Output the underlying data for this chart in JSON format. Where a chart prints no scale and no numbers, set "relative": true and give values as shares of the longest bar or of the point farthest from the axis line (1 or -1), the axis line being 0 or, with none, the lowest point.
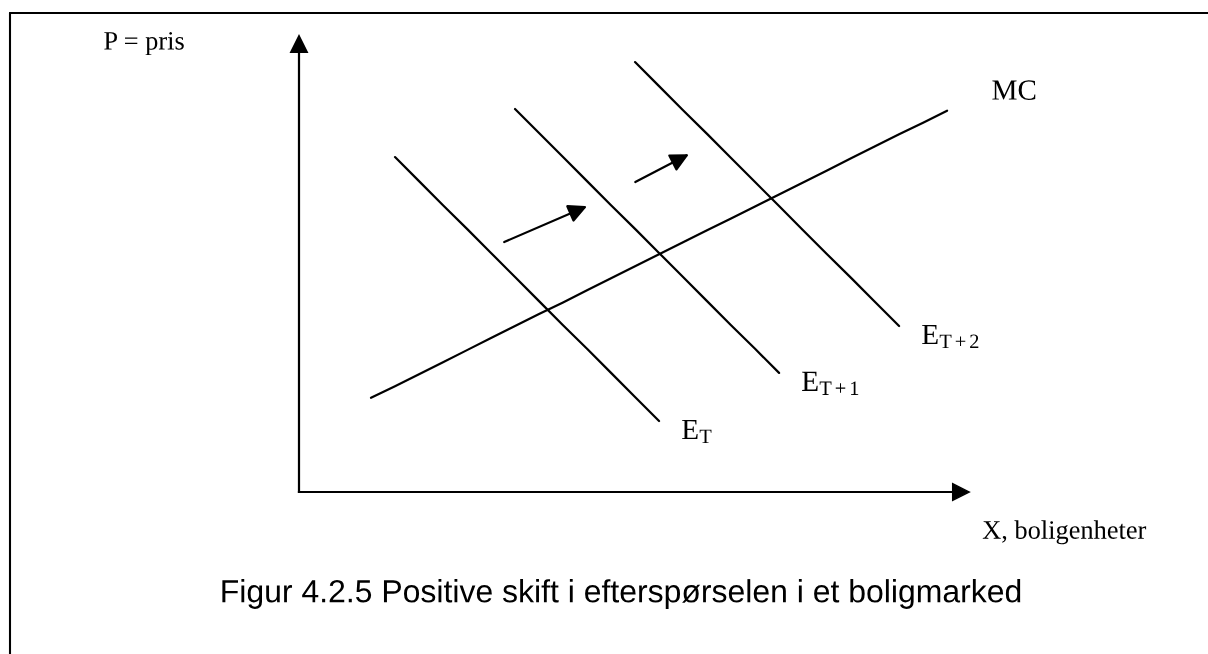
{
  "chart_data": {
    "type": "line",
    "relative": true,
    "title": "Figur 4.2.5 Positive skift i efterspørselen i et boligmarked",
    "xlabel": "X, boligenheter",
    "annotations": [
      "P = pris"
    ],
    "tick_labels": false,
    "categories": [
      null,
      null,
      null,
      null,
      null,
      null,
      null,
      null,
      null,
      null,
      null,
      null,
      null,
      null,
      null,
      null,
      null,
      null,
      null,
      null,
      null,
      null,
      null,
      null,
      null
    ],
    "series": [
      {
        "name": "MC",
        "color": "#000000",
        "values": [
          0.219,
          0.246,
          0.274,
          0.302,
          0.33,
          0.358,
          0.386,
          0.414,
          0.441,
          0.469,
          0.497,
          0.525,
          0.553,
          0.581,
          0.609,
          0.636,
          0.664,
          0.692,
          0.72,
          0.748,
          0.776,
          0.804,
          0.832,
          0.859,
          0.887
        ]
      },
      {
        "name": "E$_{T}$",
        "color": "#000000",
        "values": [
          null,
          0.779,
          0.723,
          0.667,
          0.612,
          0.556,
          0.5,
          0.444,
          0.388,
          0.333,
          0.277,
          0.221,
          0.165,
          null,
          null,
          null,
          null,
          null,
          null,
          null,
          null,
          null,
          null,
          null,
          null
        ]
      },
      {
        "name": "E$_{T+1}$",
        "color": "#000000",
        "values": [
          null,
          null,
          null,
          null,
          null,
          null,
          0.891,
          0.835,
          0.779,
          0.723,
          0.667,
          0.612,
          0.556,
          0.5,
          0.444,
          0.388,
          0.333,
          0.277,
          null,
          null,
          null,
          null,
          null,
          null,
          null
        ]
      },
      {
        "name": "E$_{T+2}$",
        "color": "#000000",
        "values": [
          null,
          null,
          null,
          null,
          null,
          null,
          null,
          null,
          null,
          null,
          null,
          1.0,
          0.944,
          0.888,
          0.833,
          0.777,
          0.721,
          0.665,
          0.609,
          0.553,
          0.498,
          0.442,
          0.386,
          null,
          null
        ]
      }
    ]
  }
}
